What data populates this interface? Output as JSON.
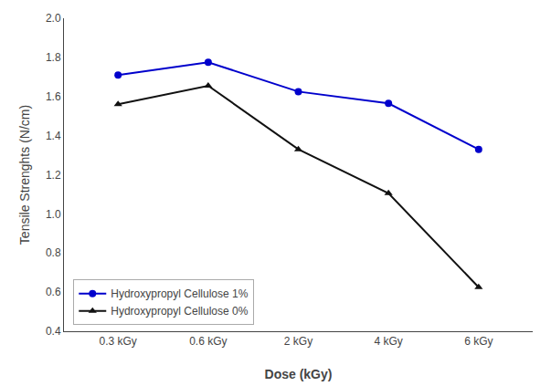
{
  "chart_data": {
    "type": "line",
    "xlabel": "Dose (kGy)",
    "ylabel": "Tensile Strenghts (N/cm)",
    "categories": [
      "0.3 kGy",
      "0.6 kGy",
      "2 kGy",
      "4 kGy",
      "6 kGy"
    ],
    "series": [
      {
        "name": "Hydroxypropyl Cellulose 1%",
        "color": "#0000cc",
        "marker": "circle",
        "values": [
          1.71,
          1.775,
          1.625,
          1.565,
          1.33
        ]
      },
      {
        "name": "Hydroxypropyl Cellulose 0%",
        "color": "#111111",
        "marker": "triangle-up",
        "values": [
          1.56,
          1.655,
          1.33,
          1.105,
          0.625
        ]
      }
    ],
    "ylim": [
      0.4,
      2.0
    ],
    "yticks": [
      0.4,
      0.6,
      0.8,
      {
        "value": 1.0,
        "label": "1.0"
      },
      1.2,
      1.4,
      1.6,
      1.8,
      {
        "value": 2.0,
        "label": "2.0"
      }
    ],
    "grid": false,
    "legend": "lower left"
  }
}
